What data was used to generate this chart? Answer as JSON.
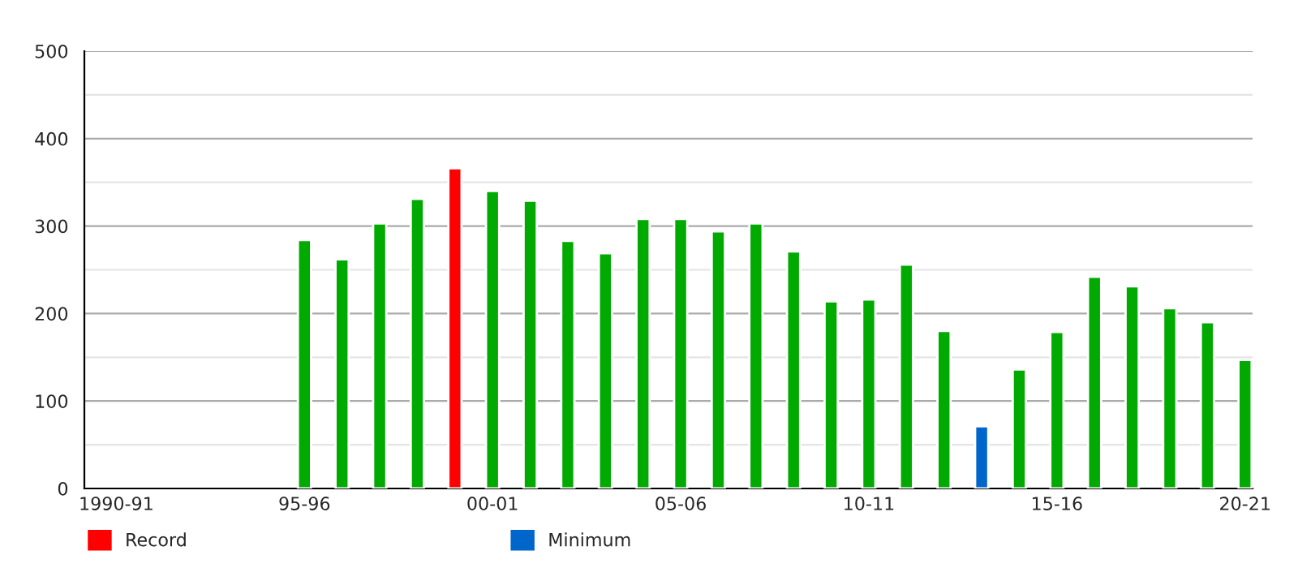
{
  "chart_data": {
    "type": "bar",
    "categories": [
      "1990-91",
      null,
      null,
      null,
      null,
      "95-96",
      null,
      null,
      null,
      null,
      "00-01",
      null,
      null,
      null,
      null,
      "05-06",
      null,
      null,
      null,
      null,
      "10-11",
      null,
      null,
      null,
      null,
      "15-16",
      null,
      null,
      null,
      null,
      "20-21"
    ],
    "series": [
      {
        "color": "#00aa00",
        "values": [
          null,
          null,
          null,
          null,
          null,
          284,
          262,
          303,
          331,
          null,
          340,
          329,
          283,
          269,
          308,
          308,
          294,
          303,
          271,
          214,
          216,
          256,
          180,
          null,
          136,
          179,
          242,
          231,
          206,
          190,
          147
        ]
      },
      {
        "name": "Record",
        "color": "#ff0000",
        "values": [
          null,
          null,
          null,
          null,
          null,
          null,
          null,
          null,
          null,
          366,
          null,
          null,
          null,
          null,
          null,
          null,
          null,
          null,
          null,
          null,
          null,
          null,
          null,
          null,
          null,
          null,
          null,
          null,
          null,
          null,
          null
        ]
      },
      {
        "name": "Minimum",
        "color": "#0066cc",
        "values": [
          null,
          null,
          null,
          null,
          null,
          null,
          null,
          null,
          null,
          null,
          null,
          null,
          null,
          null,
          null,
          null,
          null,
          null,
          null,
          null,
          null,
          null,
          null,
          71,
          null,
          null,
          null,
          null,
          null,
          null,
          null
        ]
      }
    ],
    "ylim": [
      0,
      500
    ],
    "yticks": [
      0,
      100,
      200,
      300,
      400,
      500
    ],
    "grid": "y",
    "legend": "bottom left"
  }
}
